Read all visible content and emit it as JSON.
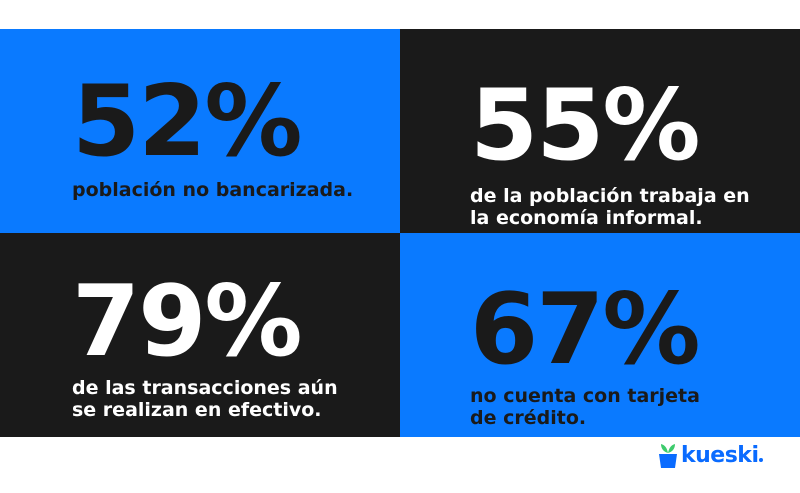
{
  "colors": {
    "blue": "#0A7AFF",
    "black": "#1A1A1A",
    "white": "#FFFFFF",
    "dark_text": "#1A1A1A",
    "logo_blue": "#0A6BFF",
    "logo_green": "#3DCB6C"
  },
  "tiles": [
    {
      "value": "52%",
      "caption": "población no bancarizada.",
      "theme": "blue"
    },
    {
      "value": "55%",
      "caption": "de la población trabaja en\nla economía informal.",
      "theme": "black"
    },
    {
      "value": "79%",
      "caption": "de las transacciones aún\nse realizan en efectivo.",
      "theme": "black"
    },
    {
      "value": "67%",
      "caption": "no cuenta con tarjeta\nde crédito.",
      "theme": "blue"
    }
  ],
  "brand": {
    "name": "kueski",
    "icon": "plant-pot-icon"
  }
}
